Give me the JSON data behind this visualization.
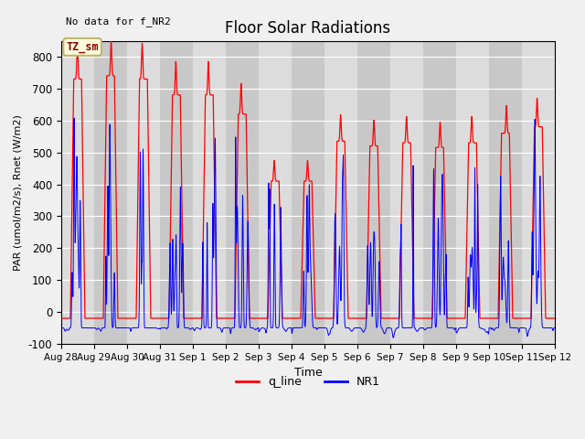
{
  "title": "Floor Solar Radiations",
  "xlabel": "Time",
  "ylabel": "PAR (umol/m2/s), Rnet (W/m2)",
  "annotation_text": "No data for f_NR2",
  "legend_label_box": "TZ_sm",
  "legend_line1": "q_line",
  "legend_line2": "NR1",
  "ylim": [
    -100,
    850
  ],
  "yticks": [
    -100,
    0,
    100,
    200,
    300,
    400,
    500,
    600,
    700,
    800
  ],
  "color_red": "#FF0000",
  "color_blue": "#0000FF",
  "bg_color": "#DCDCDC",
  "fig_bg": "#F0F0F0",
  "num_days": 15,
  "ppd": 1440,
  "red_peaks": [
    750,
    760,
    750,
    700,
    700,
    640,
    430,
    430,
    555,
    540,
    550,
    535,
    550,
    580,
    600
  ],
  "blue_peaks": [
    650,
    645,
    620,
    475,
    595,
    590,
    430,
    440,
    525,
    305,
    500,
    500,
    480,
    490,
    600
  ],
  "red_night": -20,
  "blue_night": -50,
  "tick_labels": [
    "Aug 28",
    "Aug 29",
    "Aug 30",
    "Aug 31",
    "Sep 1",
    "Sep 2",
    "Sep 3",
    "Sep 4",
    "Sep 5",
    "Sep 6",
    "Sep 7",
    "Sep 8",
    "Sep 9",
    "Sep 10",
    "Sep 11",
    "Sep 12"
  ]
}
